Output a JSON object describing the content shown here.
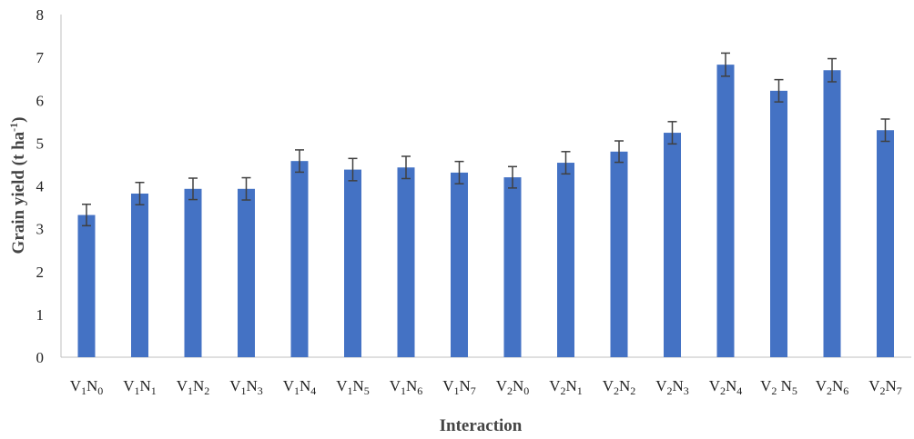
{
  "chart_data": {
    "type": "bar",
    "title": "",
    "xlabel": "Interaction",
    "ylabel": "Grain yield (t ha",
    "ylabel_sup": "-1",
    "ylabel_close": ")",
    "ylim": [
      0,
      8
    ],
    "yticks": [
      "0",
      "1",
      "2",
      "3",
      "4",
      "5",
      "6",
      "7",
      "8"
    ],
    "grid": false,
    "bar_color": "#4472C4",
    "error_color": "#404040",
    "categories": [
      {
        "base": "V",
        "vsub": "1",
        "mid": "N",
        "nsub": "0"
      },
      {
        "base": "V",
        "vsub": "1",
        "mid": "N",
        "nsub": "1"
      },
      {
        "base": "V",
        "vsub": "1",
        "mid": "N",
        "nsub": "2"
      },
      {
        "base": "V",
        "vsub": "1",
        "mid": "N",
        "nsub": "3"
      },
      {
        "base": "V",
        "vsub": "1",
        "mid": "N",
        "nsub": "4"
      },
      {
        "base": "V",
        "vsub": "1",
        "mid": "N",
        "nsub": "5"
      },
      {
        "base": "V",
        "vsub": "1",
        "mid": "N",
        "nsub": "6"
      },
      {
        "base": "V",
        "vsub": "1",
        "mid": "N",
        "nsub": "7"
      },
      {
        "base": "V",
        "vsub": "2",
        "mid": "N",
        "nsub": "0"
      },
      {
        "base": "V",
        "vsub": "2",
        "mid": "N",
        "nsub": "1"
      },
      {
        "base": "V",
        "vsub": "2",
        "mid": "N",
        "nsub": "2"
      },
      {
        "base": "V",
        "vsub": "2",
        "mid": "N",
        "nsub": "3"
      },
      {
        "base": "V",
        "vsub": "2",
        "mid": "N",
        "nsub": "4"
      },
      {
        "base": "V",
        "vsub": "2",
        "mid": " N",
        "nsub": "5"
      },
      {
        "base": "V",
        "vsub": "2",
        "mid": "N",
        "nsub": "6"
      },
      {
        "base": "V",
        "vsub": "2",
        "mid": "N",
        "nsub": "7"
      }
    ],
    "values": [
      3.32,
      3.82,
      3.93,
      3.93,
      4.58,
      4.38,
      4.43,
      4.31,
      4.2,
      4.54,
      4.8,
      5.24,
      6.83,
      6.22,
      6.7,
      5.3
    ],
    "errors": [
      0.25,
      0.26,
      0.25,
      0.26,
      0.26,
      0.26,
      0.26,
      0.26,
      0.25,
      0.26,
      0.25,
      0.26,
      0.27,
      0.26,
      0.27,
      0.26
    ]
  }
}
